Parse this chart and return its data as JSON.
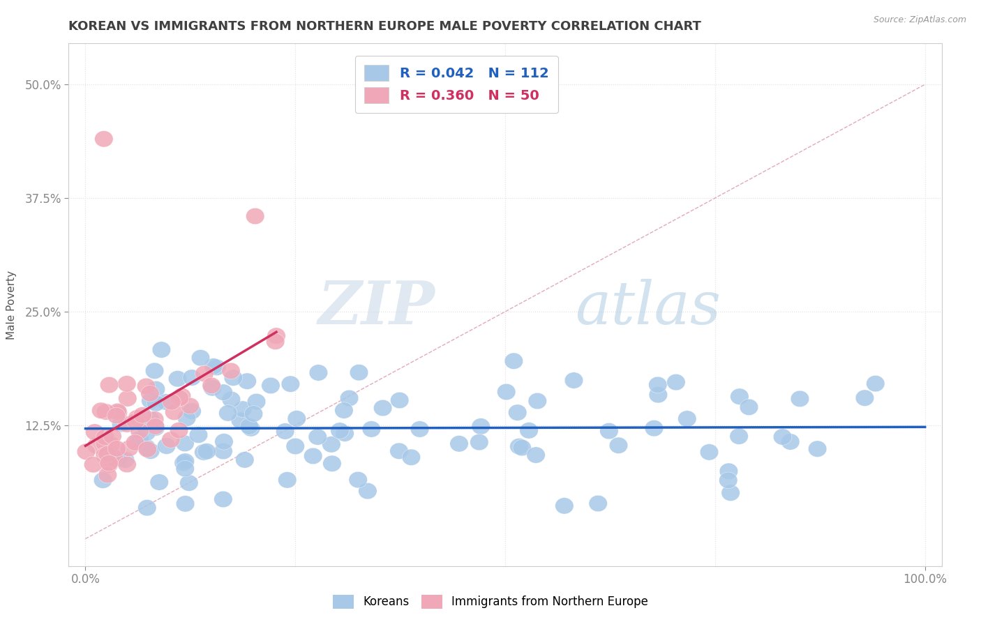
{
  "title": "KOREAN VS IMMIGRANTS FROM NORTHERN EUROPE MALE POVERTY CORRELATION CHART",
  "source": "Source: ZipAtlas.com",
  "xlabel": "",
  "ylabel": "Male Poverty",
  "xlim": [
    -0.02,
    1.02
  ],
  "ylim": [
    -0.03,
    0.545
  ],
  "x_ticks": [
    0.0,
    1.0
  ],
  "x_tick_labels": [
    "0.0%",
    "100.0%"
  ],
  "y_ticks": [
    0.125,
    0.25,
    0.375,
    0.5
  ],
  "y_tick_labels": [
    "12.5%",
    "25.0%",
    "37.5%",
    "50.0%"
  ],
  "korean_R": 0.042,
  "korean_N": 112,
  "immigrant_R": 0.36,
  "immigrant_N": 50,
  "korean_color": "#a8c8e8",
  "immigrant_color": "#f0a8b8",
  "korean_line_color": "#2060c0",
  "immigrant_line_color": "#d03060",
  "ref_line_color": "#e0a0b0",
  "background_color": "#ffffff",
  "grid_color": "#e0e0e0",
  "title_color": "#404040",
  "source_color": "#999999",
  "watermark_zip": "ZIP",
  "watermark_atlas": "atlas",
  "watermark_color_zip": "#c8d8e8",
  "watermark_color_atlas": "#90b8d8"
}
